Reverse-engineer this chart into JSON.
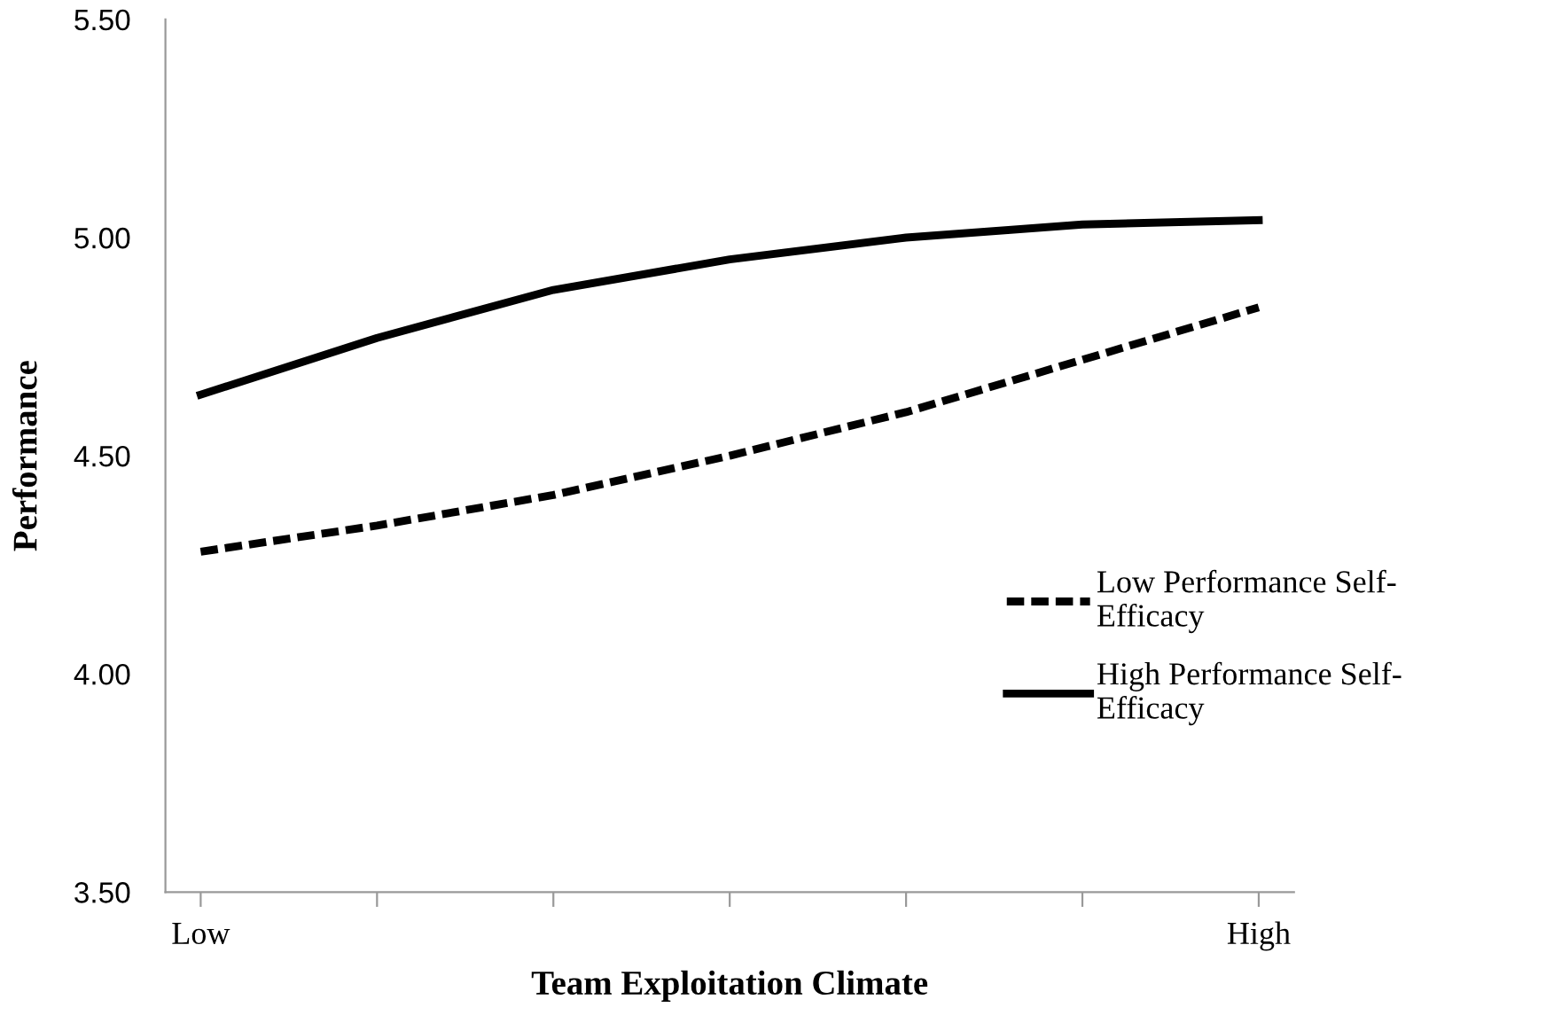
{
  "chart_data": {
    "type": "line",
    "xlabel": "Team Exploitation Climate",
    "ylabel": "Performance",
    "categories": [
      "Low",
      null,
      null,
      null,
      null,
      null,
      "High"
    ],
    "ylim": [
      3.5,
      5.5
    ],
    "yticks": [
      {
        "value": 3.5,
        "label": "3.50"
      },
      {
        "value": 4.0,
        "label": "4.00"
      },
      {
        "value": 4.5,
        "label": "4.50"
      },
      {
        "value": 5.0,
        "label": "5.00"
      },
      {
        "value": 5.5,
        "label": "5.50"
      }
    ],
    "series": [
      {
        "name": "Low Performance Self-Efficacy",
        "color": "#000000",
        "line_style": "dashed",
        "values": [
          4.28,
          4.34,
          4.41,
          4.5,
          4.6,
          4.72,
          4.84
        ]
      },
      {
        "name": "High Performance Self-Efficacy",
        "color": "#000000",
        "line_style": "solid",
        "values": [
          4.64,
          4.77,
          4.88,
          4.95,
          5.0,
          5.03,
          5.04
        ]
      }
    ],
    "legend": "right",
    "grid": false,
    "marker": "none"
  }
}
